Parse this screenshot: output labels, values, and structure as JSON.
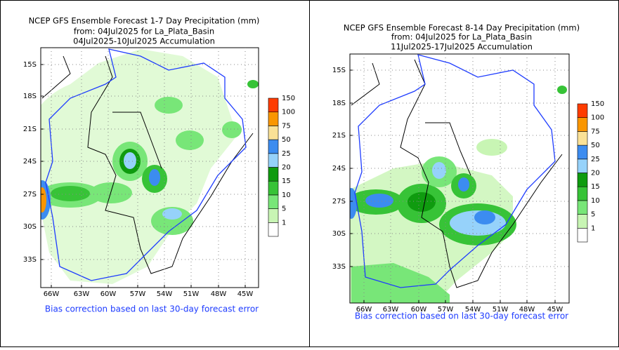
{
  "panels": [
    {
      "title_lines": [
        "NCEP GFS Ensemble Forecast 1-7 Day Precipitation (mm)",
        "from: 04Jul2025   for La_Plata_Basin",
        "04Jul2025-10Jul2025 Accumulation"
      ],
      "lat_labels": [
        "15S",
        "18S",
        "21S",
        "24S",
        "27S",
        "30S",
        "33S"
      ],
      "lon_labels": [
        "66W",
        "63W",
        "60W",
        "57W",
        "54W",
        "51W",
        "48W",
        "45W"
      ],
      "colorbar": {
        "levels": [
          1,
          5,
          10,
          15,
          20,
          25,
          50,
          75,
          100,
          150
        ],
        "colors": [
          "#ffffff",
          "#c8f5b4",
          "#78e678",
          "#37c337",
          "#0f9b0f",
          "#96d2fa",
          "#3c8cf0",
          "#fae196",
          "#fa9600",
          "#ff3c00"
        ]
      },
      "footnote": "Bias correction based on last 30-day forecast error"
    },
    {
      "title_lines": [
        "NCEP GFS Ensemble Forecast 8-14 Day Precipitation (mm)",
        "from: 04Jul2025   for La_Plata_Basin",
        "11Jul2025-17Jul2025 Accumulation"
      ],
      "lat_labels": [
        "15S",
        "18S",
        "21S",
        "24S",
        "27S",
        "30S",
        "33S"
      ],
      "lon_labels": [
        "66W",
        "63W",
        "60W",
        "57W",
        "54W",
        "51W",
        "48W",
        "45W"
      ],
      "colorbar": {
        "levels": [
          1,
          5,
          10,
          15,
          20,
          25,
          50,
          75,
          100,
          150
        ],
        "colors": [
          "#ffffff",
          "#c8f5b4",
          "#78e678",
          "#37c337",
          "#0f9b0f",
          "#96d2fa",
          "#3c8cf0",
          "#fae196",
          "#fa9600",
          "#ff3c00"
        ]
      },
      "footnote": "Bias correction based on last 30-day forecast error"
    }
  ]
}
